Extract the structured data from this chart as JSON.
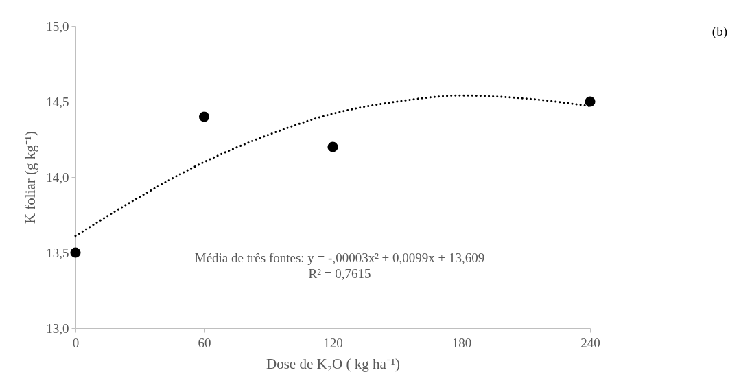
{
  "chart_data": {
    "type": "scatter",
    "xlabel": "Dose de K₂O ( kg ha⁻¹)",
    "ylabel": "K foliar (g kg⁻¹)",
    "annotations": [
      "(b)",
      "Média de três fontes: y = -,00003x² + 0,0099x + 13,609",
      "R² = 0,7615"
    ],
    "xlim": [
      0,
      240
    ],
    "xticks": [
      0,
      60,
      120,
      180,
      240
    ],
    "ylim": [
      13,
      15
    ],
    "yticks": [
      {
        "value": 13,
        "label": "13,0"
      },
      {
        "value": 13.5,
        "label": "13,5"
      },
      {
        "value": 14,
        "label": "14,0"
      },
      {
        "value": 14.5,
        "label": "14,5"
      },
      {
        "value": 15,
        "label": "15,0"
      }
    ],
    "series": [
      {
        "type": "scatter",
        "marker": "circle",
        "color": "#000000",
        "x": [
          0,
          60,
          120,
          240
        ],
        "values": [
          13.5,
          14.4,
          14.2,
          14.5
        ]
      },
      {
        "type": "line",
        "marker": "none",
        "color": "#000000",
        "line_style": "dotted",
        "x": [
          0,
          30,
          60,
          90,
          120,
          150,
          180,
          210,
          240
        ],
        "values": [
          13.61,
          13.87,
          14.1,
          14.28,
          14.42,
          14.5,
          14.54,
          14.52,
          14.47
        ]
      }
    ]
  }
}
